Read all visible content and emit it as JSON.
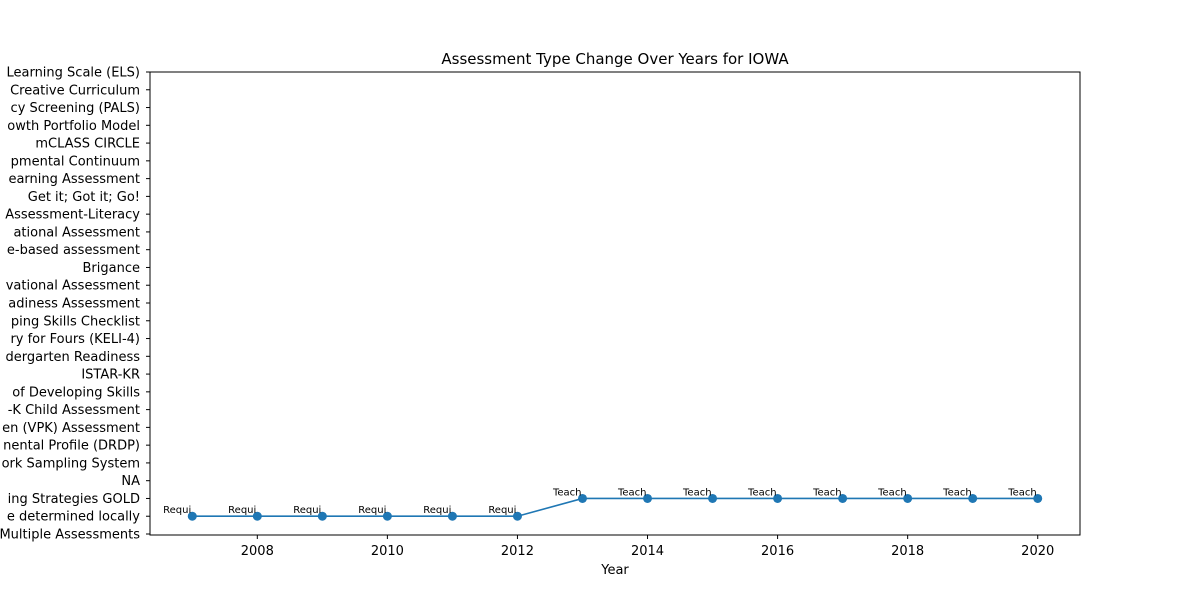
{
  "chart_data": {
    "type": "line",
    "title": "Assessment Type Change Over Years for IOWA",
    "xlabel": "Year",
    "ylabel": "",
    "xlim": [
      2006.35,
      2020.65
    ],
    "x_ticks": [
      2008,
      2010,
      2012,
      2014,
      2016,
      2018,
      2020
    ],
    "x_tick_labels": [
      "2008",
      "2010",
      "2012",
      "2014",
      "2016",
      "2018",
      "2020"
    ],
    "y_categories": [
      "Multiple Assessments",
      "e determined locally",
      "ing Strategies GOLD",
      "NA",
      "ork Sampling System",
      "nental Profile (DRDP)",
      "en (VPK) Assessment",
      "-K Child Assessment",
      "of Developing Skills",
      "ISTAR-KR",
      "dergarten Readiness",
      "ry for Fours (KELI-4) ",
      "ping Skills Checklist",
      "adiness Assessment",
      "vational Assessment",
      "Brigance",
      "e-based assessment",
      "ational Assessment ",
      "Assessment-Literacy",
      "Get it; Got it; Go!",
      "earning Assessment",
      "pmental Continuum",
      "mCLASS CIRCLE",
      "owth Portfolio Model",
      "cy Screening (PALS)",
      "Creative Curriculum",
      "Learning Scale (ELS)"
    ],
    "series": [
      {
        "color": "#1f77b4",
        "x": [
          2007,
          2008,
          2009,
          2010,
          2011,
          2012,
          2013,
          2014,
          2015,
          2016,
          2017,
          2018,
          2019,
          2020
        ],
        "y_index": [
          1,
          1,
          1,
          1,
          1,
          1,
          2,
          2,
          2,
          2,
          2,
          2,
          2,
          2
        ],
        "point_labels": [
          "Requi",
          "Requi",
          "Requi",
          "Requi",
          "Requi",
          "Requi",
          "Teach",
          "Teach",
          "Teach",
          "Teach",
          "Teach",
          "Teach",
          "Teach",
          "Teach"
        ]
      }
    ],
    "grid": false,
    "legend": "none"
  }
}
